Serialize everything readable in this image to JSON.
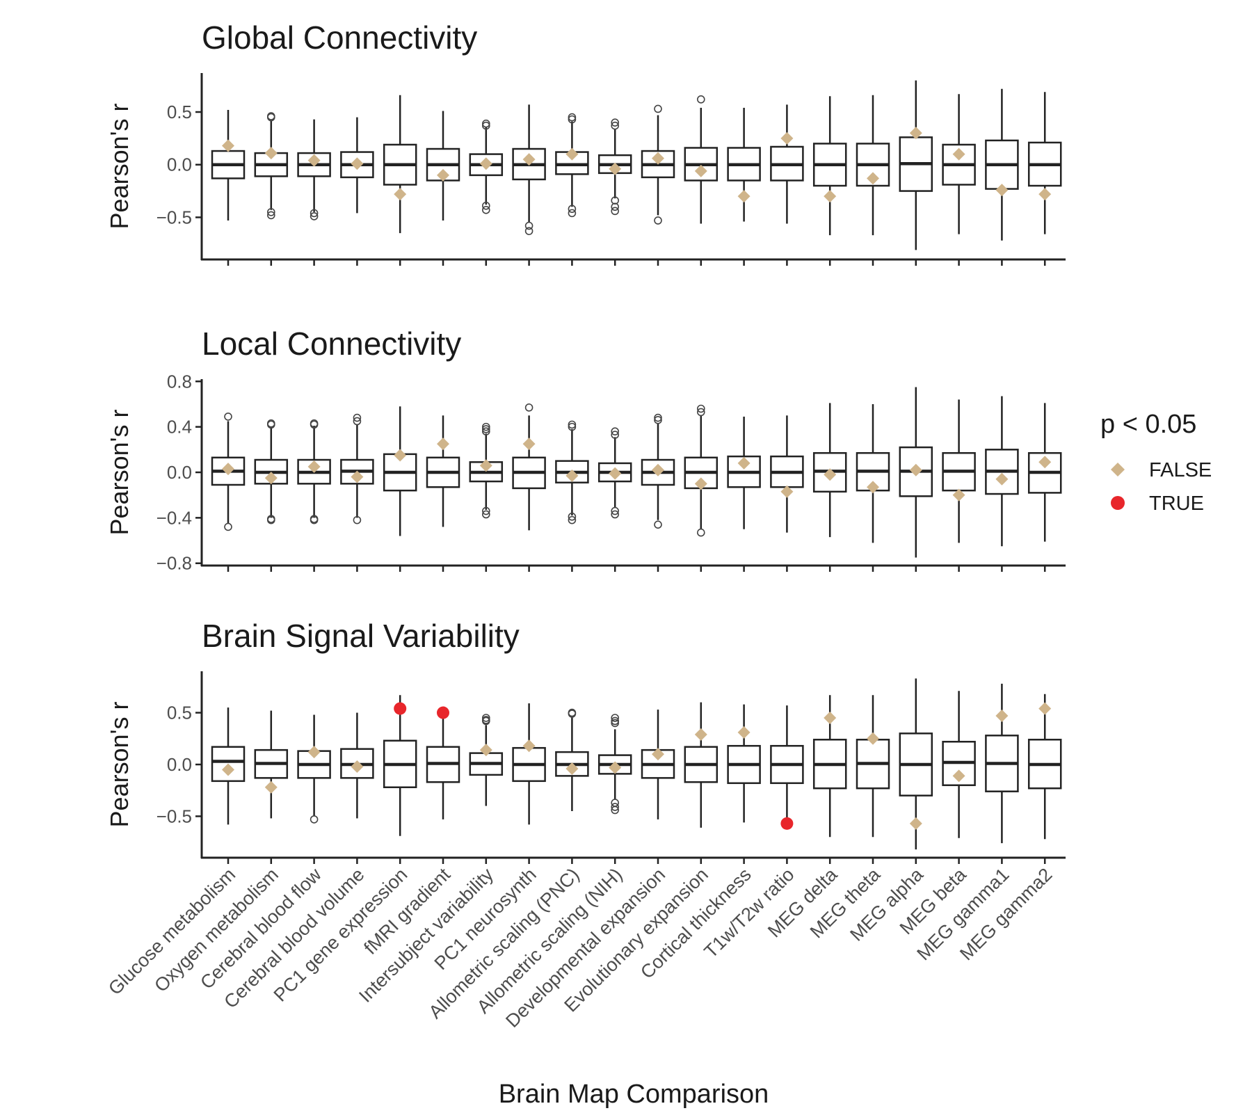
{
  "colors": {
    "false": "#cfb48a",
    "true": "#e8262b",
    "box": "#222222",
    "outlier": "#444444"
  },
  "xlabel": "Brain Map Comparison",
  "legend": {
    "title": "p < 0.05",
    "items": [
      {
        "label": "FALSE",
        "shape": "diamond",
        "color": "#cfb48a"
      },
      {
        "label": "TRUE",
        "shape": "circle",
        "color": "#e8262b"
      }
    ],
    "placement": "right"
  },
  "chart_data": [
    {
      "type": "box",
      "title": "Global Connectivity",
      "ylabel": "Pearson's r",
      "ylim": [
        -0.9,
        0.87
      ],
      "yticks": [
        -0.5,
        0.0,
        0.5
      ],
      "ytick_labels": [
        "−0.5",
        "0.0",
        "0.5"
      ],
      "categories": [
        "Glucose metabolism",
        "Oxygen metabolism",
        "Cerebral blood flow",
        "Cerebral blood volume",
        "PC1 gene expression",
        "fMRI gradient",
        "Intersubject variability",
        "PC1 neurosynth",
        "Allometric scaling (PNC)",
        "Allometric scaling (NIH)",
        "Developmental expansion",
        "Evolutionary expansion",
        "Cortical thickness",
        "T1w/T2w ratio",
        "MEG delta",
        "MEG theta",
        "MEG alpha",
        "MEG beta",
        "MEG gamma1",
        "MEG gamma2"
      ],
      "boxes": [
        {
          "lo": -0.53,
          "q1": -0.13,
          "med": 0.0,
          "q3": 0.13,
          "hi": 0.52,
          "out": []
        },
        {
          "lo": -0.43,
          "q1": -0.11,
          "med": 0.0,
          "q3": 0.11,
          "hi": 0.42,
          "out": [
            0.46,
            0.45,
            -0.45,
            -0.48
          ]
        },
        {
          "lo": -0.45,
          "q1": -0.11,
          "med": 0.0,
          "q3": 0.11,
          "hi": 0.43,
          "out": [
            -0.46,
            -0.49
          ]
        },
        {
          "lo": -0.46,
          "q1": -0.12,
          "med": 0.0,
          "q3": 0.12,
          "hi": 0.45,
          "out": []
        },
        {
          "lo": -0.65,
          "q1": -0.19,
          "med": 0.0,
          "q3": 0.19,
          "hi": 0.66,
          "out": []
        },
        {
          "lo": -0.53,
          "q1": -0.15,
          "med": 0.0,
          "q3": 0.15,
          "hi": 0.51,
          "out": []
        },
        {
          "lo": -0.38,
          "q1": -0.1,
          "med": 0.0,
          "q3": 0.1,
          "hi": 0.36,
          "out": [
            0.39,
            0.37,
            -0.39,
            -0.43
          ]
        },
        {
          "lo": -0.55,
          "q1": -0.14,
          "med": 0.0,
          "q3": 0.15,
          "hi": 0.57,
          "out": [
            -0.58,
            -0.63
          ]
        },
        {
          "lo": -0.4,
          "q1": -0.09,
          "med": 0.0,
          "q3": 0.12,
          "hi": 0.41,
          "out": [
            0.45,
            0.43,
            -0.42,
            -0.46
          ]
        },
        {
          "lo": -0.32,
          "q1": -0.08,
          "med": 0.0,
          "q3": 0.09,
          "hi": 0.34,
          "out": [
            0.4,
            0.37,
            -0.34,
            -0.4,
            -0.44
          ]
        },
        {
          "lo": -0.48,
          "q1": -0.12,
          "med": 0.0,
          "q3": 0.13,
          "hi": 0.47,
          "out": [
            0.53,
            -0.53
          ]
        },
        {
          "lo": -0.56,
          "q1": -0.15,
          "med": 0.0,
          "q3": 0.16,
          "hi": 0.54,
          "out": [
            0.62
          ]
        },
        {
          "lo": -0.54,
          "q1": -0.15,
          "med": 0.0,
          "q3": 0.16,
          "hi": 0.54,
          "out": []
        },
        {
          "lo": -0.56,
          "q1": -0.15,
          "med": 0.0,
          "q3": 0.17,
          "hi": 0.57,
          "out": []
        },
        {
          "lo": -0.67,
          "q1": -0.2,
          "med": 0.0,
          "q3": 0.2,
          "hi": 0.65,
          "out": []
        },
        {
          "lo": -0.67,
          "q1": -0.2,
          "med": 0.0,
          "q3": 0.2,
          "hi": 0.66,
          "out": []
        },
        {
          "lo": -0.81,
          "q1": -0.25,
          "med": 0.01,
          "q3": 0.26,
          "hi": 0.8,
          "out": []
        },
        {
          "lo": -0.66,
          "q1": -0.19,
          "med": 0.0,
          "q3": 0.19,
          "hi": 0.67,
          "out": []
        },
        {
          "lo": -0.72,
          "q1": -0.23,
          "med": 0.0,
          "q3": 0.23,
          "hi": 0.72,
          "out": []
        },
        {
          "lo": -0.66,
          "q1": -0.2,
          "med": 0.0,
          "q3": 0.21,
          "hi": 0.69,
          "out": []
        }
      ],
      "observed": [
        {
          "r": 0.18,
          "sig": false
        },
        {
          "r": 0.11,
          "sig": false
        },
        {
          "r": 0.04,
          "sig": false
        },
        {
          "r": 0.01,
          "sig": false
        },
        {
          "r": -0.28,
          "sig": false
        },
        {
          "r": -0.1,
          "sig": false
        },
        {
          "r": 0.01,
          "sig": false
        },
        {
          "r": 0.05,
          "sig": false
        },
        {
          "r": 0.1,
          "sig": false
        },
        {
          "r": -0.04,
          "sig": false
        },
        {
          "r": 0.06,
          "sig": false
        },
        {
          "r": -0.06,
          "sig": false
        },
        {
          "r": -0.3,
          "sig": false
        },
        {
          "r": 0.25,
          "sig": false
        },
        {
          "r": -0.3,
          "sig": false
        },
        {
          "r": -0.13,
          "sig": false
        },
        {
          "r": 0.3,
          "sig": false
        },
        {
          "r": 0.1,
          "sig": false
        },
        {
          "r": -0.24,
          "sig": false
        },
        {
          "r": -0.28,
          "sig": false
        }
      ]
    },
    {
      "type": "box",
      "title": "Local Connectivity",
      "ylabel": "Pearson's r",
      "ylim": [
        -0.82,
        0.82
      ],
      "yticks": [
        -0.8,
        -0.4,
        0.0,
        0.4,
        0.8
      ],
      "ytick_labels": [
        "−0.8",
        "−0.4",
        "0.0",
        "0.4",
        "0.8"
      ],
      "categories": [
        "Glucose metabolism",
        "Oxygen metabolism",
        "Cerebral blood flow",
        "Cerebral blood volume",
        "PC1 gene expression",
        "fMRI gradient",
        "Intersubject variability",
        "PC1 neurosynth",
        "Allometric scaling (PNC)",
        "Allometric scaling (NIH)",
        "Developmental expansion",
        "Evolutionary expansion",
        "Cortical thickness",
        "T1w/T2w ratio",
        "MEG delta",
        "MEG theta",
        "MEG alpha",
        "MEG beta",
        "MEG gamma1",
        "MEG gamma2"
      ],
      "boxes": [
        {
          "lo": -0.45,
          "q1": -0.11,
          "med": 0.01,
          "q3": 0.13,
          "hi": 0.45,
          "out": [
            0.49,
            -0.48
          ]
        },
        {
          "lo": -0.4,
          "q1": -0.1,
          "med": 0.0,
          "q3": 0.11,
          "hi": 0.4,
          "out": [
            0.43,
            0.42,
            -0.41,
            -0.42
          ]
        },
        {
          "lo": -0.4,
          "q1": -0.1,
          "med": 0.0,
          "q3": 0.11,
          "hi": 0.41,
          "out": [
            0.43,
            0.42,
            -0.41,
            -0.42
          ]
        },
        {
          "lo": -0.4,
          "q1": -0.1,
          "med": 0.01,
          "q3": 0.11,
          "hi": 0.42,
          "out": [
            0.48,
            0.45,
            -0.42
          ]
        },
        {
          "lo": -0.56,
          "q1": -0.16,
          "med": 0.0,
          "q3": 0.16,
          "hi": 0.58,
          "out": []
        },
        {
          "lo": -0.48,
          "q1": -0.13,
          "med": 0.0,
          "q3": 0.13,
          "hi": 0.5,
          "out": []
        },
        {
          "lo": -0.33,
          "q1": -0.08,
          "med": 0.0,
          "q3": 0.09,
          "hi": 0.34,
          "out": [
            0.4,
            0.38,
            0.36,
            -0.34,
            -0.37
          ]
        },
        {
          "lo": -0.51,
          "q1": -0.14,
          "med": 0.0,
          "q3": 0.13,
          "hi": 0.5,
          "out": [
            0.57
          ]
        },
        {
          "lo": -0.38,
          "q1": -0.09,
          "med": 0.0,
          "q3": 0.1,
          "hi": 0.38,
          "out": [
            0.42,
            0.4,
            -0.39,
            -0.42
          ]
        },
        {
          "lo": -0.31,
          "q1": -0.08,
          "med": 0.0,
          "q3": 0.08,
          "hi": 0.31,
          "out": [
            0.36,
            0.33,
            -0.34,
            -0.37
          ]
        },
        {
          "lo": -0.42,
          "q1": -0.11,
          "med": 0.0,
          "q3": 0.11,
          "hi": 0.43,
          "out": [
            0.48,
            0.46,
            -0.46
          ]
        },
        {
          "lo": -0.5,
          "q1": -0.14,
          "med": 0.0,
          "q3": 0.13,
          "hi": 0.5,
          "out": [
            0.56,
            0.53,
            -0.53
          ]
        },
        {
          "lo": -0.5,
          "q1": -0.13,
          "med": 0.0,
          "q3": 0.14,
          "hi": 0.49,
          "out": []
        },
        {
          "lo": -0.53,
          "q1": -0.13,
          "med": 0.0,
          "q3": 0.14,
          "hi": 0.5,
          "out": []
        },
        {
          "lo": -0.57,
          "q1": -0.17,
          "med": 0.01,
          "q3": 0.17,
          "hi": 0.61,
          "out": []
        },
        {
          "lo": -0.62,
          "q1": -0.16,
          "med": 0.01,
          "q3": 0.17,
          "hi": 0.6,
          "out": []
        },
        {
          "lo": -0.75,
          "q1": -0.21,
          "med": 0.01,
          "q3": 0.22,
          "hi": 0.75,
          "out": []
        },
        {
          "lo": -0.62,
          "q1": -0.16,
          "med": 0.01,
          "q3": 0.17,
          "hi": 0.64,
          "out": []
        },
        {
          "lo": -0.65,
          "q1": -0.19,
          "med": 0.01,
          "q3": 0.2,
          "hi": 0.67,
          "out": []
        },
        {
          "lo": -0.61,
          "q1": -0.18,
          "med": 0.0,
          "q3": 0.17,
          "hi": 0.61,
          "out": []
        }
      ],
      "observed": [
        {
          "r": 0.03,
          "sig": false
        },
        {
          "r": -0.05,
          "sig": false
        },
        {
          "r": 0.05,
          "sig": false
        },
        {
          "r": -0.04,
          "sig": false
        },
        {
          "r": 0.15,
          "sig": false
        },
        {
          "r": 0.25,
          "sig": false
        },
        {
          "r": 0.06,
          "sig": false
        },
        {
          "r": 0.25,
          "sig": false
        },
        {
          "r": -0.03,
          "sig": false
        },
        {
          "r": -0.01,
          "sig": false
        },
        {
          "r": 0.02,
          "sig": false
        },
        {
          "r": -0.1,
          "sig": false
        },
        {
          "r": 0.08,
          "sig": false
        },
        {
          "r": -0.17,
          "sig": false
        },
        {
          "r": -0.02,
          "sig": false
        },
        {
          "r": -0.13,
          "sig": false
        },
        {
          "r": 0.02,
          "sig": false
        },
        {
          "r": -0.2,
          "sig": false
        },
        {
          "r": -0.06,
          "sig": false
        },
        {
          "r": 0.09,
          "sig": false
        }
      ]
    },
    {
      "type": "box",
      "title": "Brain Signal Variability",
      "ylabel": "Pearson's r",
      "ylim": [
        -0.9,
        0.9
      ],
      "yticks": [
        -0.5,
        0.0,
        0.5
      ],
      "ytick_labels": [
        "−0.5",
        "0.0",
        "0.5"
      ],
      "categories": [
        "Glucose metabolism",
        "Oxygen metabolism",
        "Cerebral blood flow",
        "Cerebral blood volume",
        "PC1 gene expression",
        "fMRI gradient",
        "Intersubject variability",
        "PC1 neurosynth",
        "Allometric scaling (PNC)",
        "Allometric scaling (NIH)",
        "Developmental expansion",
        "Evolutionary expansion",
        "Cortical thickness",
        "T1w/T2w ratio",
        "MEG delta",
        "MEG theta",
        "MEG alpha",
        "MEG beta",
        "MEG gamma1",
        "MEG gamma2"
      ],
      "boxes": [
        {
          "lo": -0.58,
          "q1": -0.16,
          "med": 0.03,
          "q3": 0.17,
          "hi": 0.55,
          "out": []
        },
        {
          "lo": -0.52,
          "q1": -0.13,
          "med": 0.01,
          "q3": 0.14,
          "hi": 0.52,
          "out": []
        },
        {
          "lo": -0.5,
          "q1": -0.13,
          "med": 0.0,
          "q3": 0.13,
          "hi": 0.48,
          "out": [
            -0.53
          ]
        },
        {
          "lo": -0.52,
          "q1": -0.13,
          "med": 0.0,
          "q3": 0.15,
          "hi": 0.5,
          "out": []
        },
        {
          "lo": -0.69,
          "q1": -0.22,
          "med": 0.0,
          "q3": 0.23,
          "hi": 0.67,
          "out": []
        },
        {
          "lo": -0.53,
          "q1": -0.17,
          "med": 0.01,
          "q3": 0.17,
          "hi": 0.52,
          "out": []
        },
        {
          "lo": -0.4,
          "q1": -0.1,
          "med": 0.01,
          "q3": 0.11,
          "hi": 0.38,
          "out": [
            0.45,
            0.43,
            0.42
          ]
        },
        {
          "lo": -0.58,
          "q1": -0.16,
          "med": 0.0,
          "q3": 0.16,
          "hi": 0.59,
          "out": []
        },
        {
          "lo": -0.45,
          "q1": -0.11,
          "med": 0.0,
          "q3": 0.12,
          "hi": 0.46,
          "out": [
            0.5,
            0.49
          ]
        },
        {
          "lo": -0.34,
          "q1": -0.09,
          "med": 0.0,
          "q3": 0.09,
          "hi": 0.34,
          "out": [
            0.45,
            0.42,
            0.4,
            -0.37,
            -0.41,
            -0.44
          ]
        },
        {
          "lo": -0.53,
          "q1": -0.13,
          "med": 0.0,
          "q3": 0.14,
          "hi": 0.53,
          "out": []
        },
        {
          "lo": -0.61,
          "q1": -0.17,
          "med": 0.0,
          "q3": 0.17,
          "hi": 0.6,
          "out": []
        },
        {
          "lo": -0.56,
          "q1": -0.18,
          "med": 0.0,
          "q3": 0.18,
          "hi": 0.58,
          "out": []
        },
        {
          "lo": -0.58,
          "q1": -0.18,
          "med": 0.0,
          "q3": 0.18,
          "hi": 0.57,
          "out": []
        },
        {
          "lo": -0.7,
          "q1": -0.23,
          "med": 0.0,
          "q3": 0.24,
          "hi": 0.67,
          "out": []
        },
        {
          "lo": -0.7,
          "q1": -0.23,
          "med": 0.01,
          "q3": 0.24,
          "hi": 0.67,
          "out": []
        },
        {
          "lo": -0.82,
          "q1": -0.3,
          "med": 0.0,
          "q3": 0.3,
          "hi": 0.83,
          "out": []
        },
        {
          "lo": -0.71,
          "q1": -0.2,
          "med": 0.02,
          "q3": 0.22,
          "hi": 0.71,
          "out": []
        },
        {
          "lo": -0.76,
          "q1": -0.26,
          "med": 0.01,
          "q3": 0.28,
          "hi": 0.78,
          "out": []
        },
        {
          "lo": -0.72,
          "q1": -0.23,
          "med": 0.0,
          "q3": 0.24,
          "hi": 0.68,
          "out": []
        }
      ],
      "observed": [
        {
          "r": -0.05,
          "sig": false
        },
        {
          "r": -0.22,
          "sig": false
        },
        {
          "r": 0.12,
          "sig": false
        },
        {
          "r": -0.02,
          "sig": false
        },
        {
          "r": 0.54,
          "sig": true
        },
        {
          "r": 0.5,
          "sig": true
        },
        {
          "r": 0.14,
          "sig": false
        },
        {
          "r": 0.18,
          "sig": false
        },
        {
          "r": -0.04,
          "sig": false
        },
        {
          "r": -0.03,
          "sig": false
        },
        {
          "r": 0.1,
          "sig": false
        },
        {
          "r": 0.29,
          "sig": false
        },
        {
          "r": 0.31,
          "sig": false
        },
        {
          "r": -0.57,
          "sig": true
        },
        {
          "r": 0.45,
          "sig": false
        },
        {
          "r": 0.25,
          "sig": false
        },
        {
          "r": -0.57,
          "sig": false
        },
        {
          "r": -0.11,
          "sig": false
        },
        {
          "r": 0.47,
          "sig": false
        },
        {
          "r": 0.54,
          "sig": false
        }
      ]
    }
  ]
}
